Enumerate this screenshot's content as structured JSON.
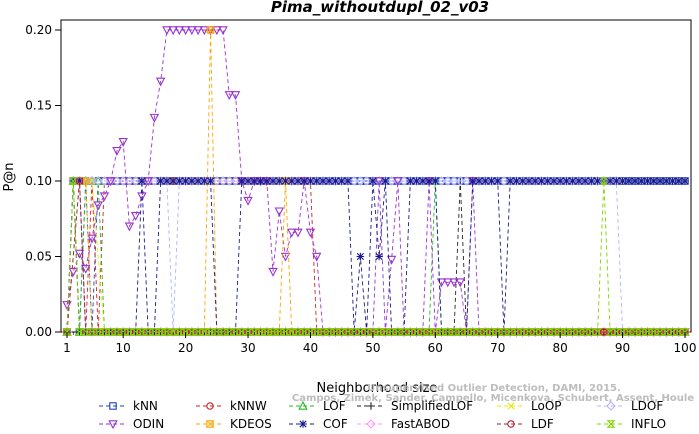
{
  "chart_data": {
    "type": "line",
    "title": "Pima_withoutdupl_02_v03",
    "xlabel": "Neighborhood size",
    "ylabel": "P@n",
    "xlim": [
      1,
      100
    ],
    "ylim": [
      0,
      0.2
    ],
    "xticks": [
      1,
      10,
      20,
      30,
      40,
      50,
      60,
      70,
      80,
      90,
      100
    ],
    "yticks": [
      "0.00",
      "0.05",
      "0.10",
      "0.15",
      "0.20"
    ],
    "grid": false,
    "legend_position": "bottom",
    "watermark": [
      "Campos, Zimek, Sander, Campello, Micenkova, Schubert, Assent, Houle",
      "Unsupervised Outlier Detection, DAMI, 2015."
    ],
    "series": [
      {
        "name": "kNN",
        "color": "#1f3fbf",
        "marker": "square",
        "points": [
          [
            1,
            0
          ],
          [
            2,
            0.1
          ],
          [
            3,
            0
          ],
          [
            4,
            0.1
          ],
          [
            5,
            0
          ],
          [
            6,
            0.1
          ],
          [
            10,
            0.1
          ],
          [
            20,
            0.1
          ],
          [
            30,
            0.1
          ],
          [
            40,
            0.1
          ],
          [
            50,
            0.1
          ],
          [
            60,
            0.1
          ],
          [
            70,
            0.1
          ],
          [
            80,
            0.1
          ],
          [
            90,
            0.1
          ],
          [
            100,
            0.1
          ]
        ]
      },
      {
        "name": "kNNW",
        "color": "#cc2222",
        "marker": "circle",
        "points": [
          [
            1,
            0
          ],
          [
            3,
            0.1
          ],
          [
            4,
            0
          ],
          [
            5,
            0.1
          ],
          [
            6,
            0
          ],
          [
            7,
            0.1
          ],
          [
            10,
            0.1
          ],
          [
            20,
            0.1
          ],
          [
            30,
            0.1
          ],
          [
            40,
            0.1
          ],
          [
            41,
            0
          ],
          [
            50,
            0
          ],
          [
            60,
            0
          ],
          [
            70,
            0
          ],
          [
            80,
            0
          ],
          [
            90,
            0
          ],
          [
            100,
            0
          ]
        ]
      },
      {
        "name": "LOF",
        "color": "#22bb22",
        "marker": "triangle",
        "points": [
          [
            1,
            0
          ],
          [
            2,
            0.1
          ],
          [
            3,
            0
          ],
          [
            4,
            0.1
          ],
          [
            6,
            0.1
          ],
          [
            7,
            0
          ],
          [
            20,
            0
          ],
          [
            40,
            0
          ],
          [
            59,
            0
          ],
          [
            60,
            0.1
          ],
          [
            61,
            0
          ],
          [
            70,
            0
          ],
          [
            80,
            0
          ],
          [
            90,
            0
          ],
          [
            100,
            0
          ]
        ]
      },
      {
        "name": "SimplifiedLOF",
        "color": "#222222",
        "marker": "plus",
        "points": [
          [
            1,
            0
          ],
          [
            2,
            0.1
          ],
          [
            3,
            0
          ],
          [
            8,
            0
          ],
          [
            30,
            0
          ],
          [
            50,
            0
          ],
          [
            60,
            0
          ],
          [
            63,
            0
          ],
          [
            64,
            0.1
          ],
          [
            65,
            0
          ],
          [
            80,
            0
          ],
          [
            100,
            0
          ]
        ]
      },
      {
        "name": "LoOP",
        "color": "#e8e800",
        "marker": "x",
        "points": [
          [
            1,
            0
          ],
          [
            3,
            0.1
          ],
          [
            5,
            0.1
          ],
          [
            7,
            0
          ],
          [
            10,
            0
          ],
          [
            30,
            0
          ],
          [
            50,
            0
          ],
          [
            70,
            0
          ],
          [
            100,
            0
          ]
        ]
      },
      {
        "name": "LDOF",
        "color": "#b4b4ff",
        "marker": "diamond",
        "points": [
          [
            1,
            0
          ],
          [
            2,
            0.1
          ],
          [
            17,
            0.1
          ],
          [
            18,
            0
          ],
          [
            19,
            0.1
          ],
          [
            30,
            0.1
          ],
          [
            60,
            0.1
          ],
          [
            70,
            0.1
          ],
          [
            80,
            0.1
          ],
          [
            89,
            0.1
          ],
          [
            90,
            0
          ],
          [
            92,
            0
          ],
          [
            100,
            0
          ]
        ]
      },
      {
        "name": "ODIN",
        "color": "#9933cc",
        "marker": "triangle-down",
        "points": [
          [
            1,
            0.018
          ],
          [
            2,
            0.04
          ],
          [
            3,
            0.052
          ],
          [
            4,
            0.042
          ],
          [
            5,
            0.062
          ],
          [
            6,
            0.084
          ],
          [
            7,
            0.09
          ],
          [
            8,
            0.1
          ],
          [
            9,
            0.12
          ],
          [
            10,
            0.126
          ],
          [
            11,
            0.07
          ],
          [
            12,
            0.077
          ],
          [
            13,
            0.09
          ],
          [
            14,
            0.1
          ],
          [
            15,
            0.142
          ],
          [
            16,
            0.166
          ],
          [
            17,
            0.2
          ],
          [
            18,
            0.2
          ],
          [
            19,
            0.2
          ],
          [
            20,
            0.2
          ],
          [
            21,
            0.2
          ],
          [
            22,
            0.2
          ],
          [
            23,
            0.2
          ],
          [
            24,
            0.2
          ],
          [
            25,
            0.2
          ],
          [
            26,
            0.2
          ],
          [
            27,
            0.157
          ],
          [
            28,
            0.157
          ],
          [
            29,
            0.1
          ],
          [
            30,
            0.087
          ],
          [
            31,
            0.1
          ],
          [
            32,
            0.1
          ],
          [
            33,
            0.1
          ],
          [
            34,
            0.04
          ],
          [
            35,
            0.08
          ],
          [
            36,
            0.05
          ],
          [
            37,
            0.066
          ],
          [
            38,
            0.066
          ],
          [
            39,
            0.1
          ],
          [
            40,
            0.066
          ],
          [
            41,
            0.05
          ],
          [
            42,
            0
          ],
          [
            45,
            0
          ],
          [
            50,
            0
          ],
          [
            51,
            0.1
          ],
          [
            52,
            0
          ],
          [
            53,
            0.048
          ],
          [
            54,
            0.1
          ],
          [
            55,
            0
          ],
          [
            58,
            0
          ],
          [
            59,
            0.1
          ],
          [
            60,
            0
          ],
          [
            61,
            0.033
          ],
          [
            62,
            0.033
          ],
          [
            63,
            0.033
          ],
          [
            64,
            0.033
          ],
          [
            65,
            0
          ],
          [
            66,
            0.1
          ],
          [
            67,
            0
          ],
          [
            75,
            0
          ],
          [
            76,
            0
          ],
          [
            77,
            0
          ],
          [
            78,
            0
          ],
          [
            80,
            0
          ],
          [
            100,
            0
          ]
        ]
      },
      {
        "name": "KDEOS",
        "color": "#ffa500",
        "marker": "square-x",
        "points": [
          [
            1,
            0
          ],
          [
            3,
            0.1
          ],
          [
            4,
            0.1
          ],
          [
            5,
            0
          ],
          [
            10,
            0
          ],
          [
            20,
            0
          ],
          [
            23,
            0
          ],
          [
            24,
            0.2
          ],
          [
            25,
            0
          ],
          [
            30,
            0
          ],
          [
            35,
            0
          ],
          [
            36,
            0.1
          ],
          [
            37,
            0
          ],
          [
            45,
            0
          ],
          [
            50,
            0
          ],
          [
            70,
            0
          ],
          [
            100,
            0
          ]
        ]
      },
      {
        "name": "COF",
        "color": "#1a1a8c",
        "marker": "star",
        "points": [
          [
            1,
            0
          ],
          [
            2,
            0.1
          ],
          [
            3,
            0.1
          ],
          [
            4,
            0
          ],
          [
            12,
            0
          ],
          [
            13,
            0.1
          ],
          [
            14,
            0
          ],
          [
            15,
            0
          ],
          [
            16,
            0.1
          ],
          [
            20,
            0.1
          ],
          [
            24,
            0.1
          ],
          [
            25,
            0
          ],
          [
            28,
            0
          ],
          [
            29,
            0.1
          ],
          [
            35,
            0.1
          ],
          [
            46,
            0.1
          ],
          [
            47,
            0
          ],
          [
            48,
            0.05
          ],
          [
            49,
            0
          ],
          [
            50,
            0.1
          ],
          [
            51,
            0.05
          ],
          [
            52,
            0.1
          ],
          [
            53,
            0
          ],
          [
            55,
            0
          ],
          [
            56,
            0.1
          ],
          [
            60,
            0.1
          ],
          [
            61,
            0
          ],
          [
            65,
            0
          ],
          [
            66,
            0.1
          ],
          [
            70,
            0.1
          ],
          [
            71,
            0
          ],
          [
            72,
            0.1
          ],
          [
            100,
            0.1
          ]
        ]
      },
      {
        "name": "FastABOD",
        "color": "#ff99ff",
        "marker": "diamond",
        "points": [
          [
            1,
            0
          ],
          [
            3,
            0.1
          ],
          [
            4,
            0
          ],
          [
            10,
            0
          ],
          [
            20,
            0
          ],
          [
            40,
            0
          ],
          [
            60,
            0
          ],
          [
            80,
            0
          ],
          [
            100,
            0
          ]
        ]
      },
      {
        "name": "LDF",
        "color": "#aa2233",
        "marker": "circle",
        "points": [
          [
            1,
            0
          ],
          [
            3,
            0.1
          ],
          [
            4,
            0
          ],
          [
            10,
            0
          ],
          [
            30,
            0
          ],
          [
            50,
            0
          ],
          [
            70,
            0
          ],
          [
            100,
            0
          ]
        ]
      },
      {
        "name": "INFLO",
        "color": "#7fd400",
        "marker": "hourglass",
        "points": [
          [
            1,
            0
          ],
          [
            2,
            0.1
          ],
          [
            3,
            0
          ],
          [
            7,
            0
          ],
          [
            10,
            0
          ],
          [
            20,
            0
          ],
          [
            40,
            0
          ],
          [
            60,
            0
          ],
          [
            80,
            0
          ],
          [
            86,
            0
          ],
          [
            87,
            0.1
          ],
          [
            88,
            0
          ],
          [
            100,
            0
          ]
        ]
      }
    ]
  }
}
